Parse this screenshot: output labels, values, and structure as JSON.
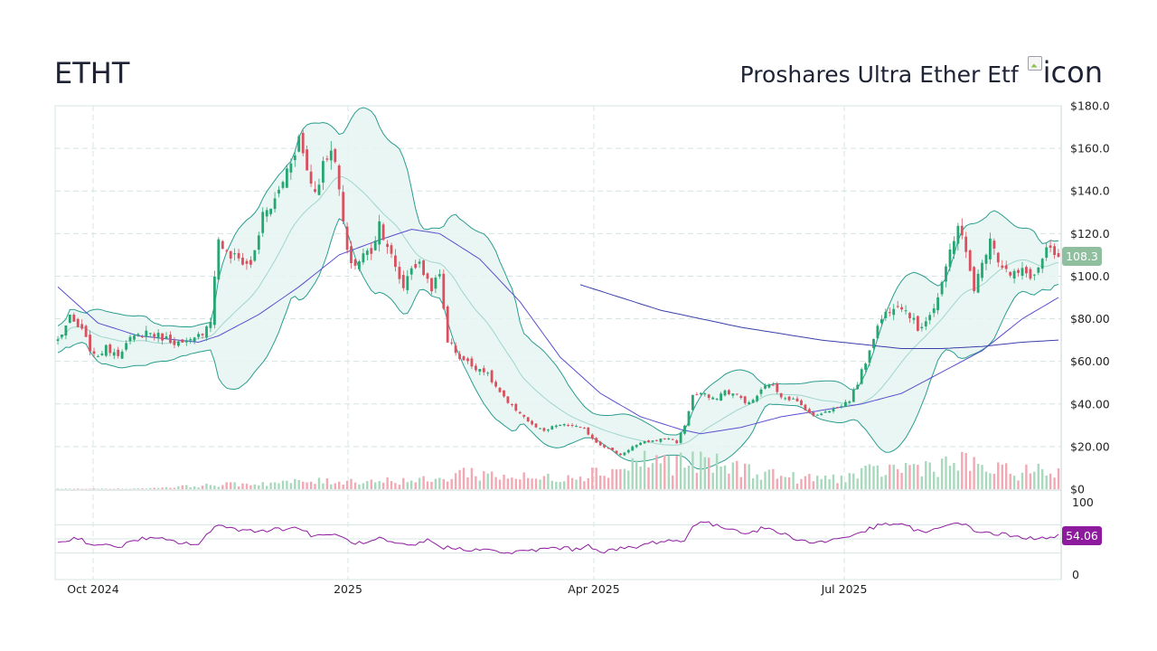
{
  "header": {
    "ticker": "ETHT",
    "company_name": "Proshares Ultra Ether Etf",
    "logo_alt_text": "icon"
  },
  "chart_data": {
    "type": "candlestick",
    "symbol": "ETHT",
    "title": "Proshares Ultra Ether Etf",
    "x_tick_labels": [
      "Oct 2024",
      "2025",
      "Apr 2025",
      "Jul 2025"
    ],
    "price_axis": {
      "ylim": [
        0,
        180
      ],
      "tick_labels": [
        "$0",
        "$20.00",
        "$40.00",
        "$60.00",
        "$80.00",
        "$100.0",
        "$120.0",
        "$140.0",
        "$160.0",
        "$180.0"
      ],
      "last_price_label": "108.3"
    },
    "rsi_axis": {
      "ylim": [
        0,
        100
      ],
      "tick_labels": [
        "0",
        "100"
      ],
      "guide_levels": [
        30,
        50,
        70
      ],
      "last_value_label": "54.06"
    },
    "colors": {
      "up": "#26a672",
      "down": "#d9505f",
      "bollinger_band": "#2a9d8f",
      "bollinger_fill": "#e6f4f1",
      "moving_average_50": "#5a4fcf",
      "moving_average_200": "#3a3fa8",
      "rsi_line": "#8e1a9e",
      "last_price_tag": "#8fbf9f",
      "rsi_tag": "#8e1a9e",
      "grid": "#d4e4e4"
    },
    "price_anchors": [
      [
        0,
        70
      ],
      [
        3,
        80
      ],
      [
        6,
        74
      ],
      [
        9,
        62
      ],
      [
        12,
        66
      ],
      [
        15,
        64
      ],
      [
        18,
        70
      ],
      [
        22,
        74
      ],
      [
        25,
        72
      ],
      [
        28,
        70
      ],
      [
        31,
        68
      ],
      [
        34,
        70
      ],
      [
        36,
        74
      ],
      [
        38,
        80
      ],
      [
        40,
        118
      ],
      [
        42,
        110
      ],
      [
        45,
        108
      ],
      [
        48,
        105
      ],
      [
        51,
        128
      ],
      [
        54,
        135
      ],
      [
        57,
        150
      ],
      [
        60,
        165
      ],
      [
        62,
        150
      ],
      [
        64,
        140
      ],
      [
        66,
        152
      ],
      [
        68,
        162
      ],
      [
        70,
        140
      ],
      [
        72,
        110
      ],
      [
        74,
        105
      ],
      [
        76,
        110
      ],
      [
        78,
        112
      ],
      [
        80,
        125
      ],
      [
        82,
        115
      ],
      [
        84,
        103
      ],
      [
        86,
        95
      ],
      [
        88,
        105
      ],
      [
        90,
        105
      ],
      [
        93,
        95
      ],
      [
        95,
        100
      ],
      [
        97,
        70
      ],
      [
        100,
        62
      ],
      [
        103,
        58
      ],
      [
        106,
        56
      ],
      [
        109,
        48
      ],
      [
        112,
        40
      ],
      [
        115,
        36
      ],
      [
        118,
        30
      ],
      [
        121,
        27
      ],
      [
        124,
        30
      ],
      [
        128,
        30
      ],
      [
        131,
        28
      ],
      [
        134,
        22
      ],
      [
        137,
        19
      ],
      [
        140,
        16
      ],
      [
        143,
        20
      ],
      [
        146,
        22
      ],
      [
        149,
        23
      ],
      [
        152,
        24
      ],
      [
        154,
        22
      ],
      [
        156,
        30
      ],
      [
        158,
        44
      ],
      [
        160,
        45
      ],
      [
        163,
        42
      ],
      [
        166,
        46
      ],
      [
        169,
        44
      ],
      [
        172,
        40
      ],
      [
        175,
        46
      ],
      [
        177,
        50
      ],
      [
        180,
        44
      ],
      [
        183,
        42
      ],
      [
        186,
        38
      ],
      [
        188,
        34
      ],
      [
        191,
        37
      ],
      [
        194,
        38
      ],
      [
        197,
        42
      ],
      [
        199,
        50
      ],
      [
        201,
        60
      ],
      [
        203,
        72
      ],
      [
        205,
        80
      ],
      [
        207,
        85
      ],
      [
        209,
        88
      ],
      [
        212,
        82
      ],
      [
        214,
        75
      ],
      [
        216,
        80
      ],
      [
        218,
        85
      ],
      [
        220,
        95
      ],
      [
        222,
        112
      ],
      [
        224,
        125
      ],
      [
        226,
        110
      ],
      [
        228,
        95
      ],
      [
        230,
        105
      ],
      [
        232,
        120
      ],
      [
        234,
        108
      ],
      [
        237,
        100
      ],
      [
        240,
        102
      ],
      [
        243,
        100
      ],
      [
        246,
        112
      ],
      [
        249,
        108
      ]
    ],
    "volume_levels": [
      [
        0,
        0.3
      ],
      [
        20,
        0.4
      ],
      [
        40,
        3
      ],
      [
        60,
        5
      ],
      [
        80,
        6
      ],
      [
        95,
        6
      ],
      [
        100,
        12
      ],
      [
        120,
        7
      ],
      [
        140,
        14
      ],
      [
        145,
        20
      ],
      [
        160,
        18
      ],
      [
        175,
        12
      ],
      [
        185,
        7
      ],
      [
        195,
        8
      ],
      [
        205,
        13
      ],
      [
        215,
        16
      ],
      [
        225,
        18
      ],
      [
        235,
        12
      ],
      [
        249,
        12
      ]
    ],
    "rsi_anchors": [
      [
        0,
        45
      ],
      [
        5,
        52
      ],
      [
        8,
        43
      ],
      [
        12,
        40
      ],
      [
        16,
        40
      ],
      [
        20,
        50
      ],
      [
        25,
        50
      ],
      [
        30,
        45
      ],
      [
        35,
        42
      ],
      [
        40,
        72
      ],
      [
        45,
        62
      ],
      [
        50,
        62
      ],
      [
        55,
        64
      ],
      [
        60,
        66
      ],
      [
        64,
        52
      ],
      [
        68,
        58
      ],
      [
        72,
        48
      ],
      [
        76,
        42
      ],
      [
        80,
        50
      ],
      [
        84,
        42
      ],
      [
        88,
        40
      ],
      [
        92,
        48
      ],
      [
        96,
        38
      ],
      [
        100,
        36
      ],
      [
        104,
        35
      ],
      [
        108,
        33
      ],
      [
        112,
        30
      ],
      [
        116,
        32
      ],
      [
        120,
        35
      ],
      [
        124,
        38
      ],
      [
        128,
        35
      ],
      [
        132,
        40
      ],
      [
        136,
        32
      ],
      [
        140,
        36
      ],
      [
        144,
        38
      ],
      [
        148,
        45
      ],
      [
        152,
        48
      ],
      [
        156,
        46
      ],
      [
        158,
        70
      ],
      [
        160,
        75
      ],
      [
        164,
        68
      ],
      [
        168,
        64
      ],
      [
        172,
        58
      ],
      [
        176,
        66
      ],
      [
        180,
        58
      ],
      [
        184,
        50
      ],
      [
        188,
        44
      ],
      [
        192,
        48
      ],
      [
        196,
        52
      ],
      [
        200,
        60
      ],
      [
        204,
        68
      ],
      [
        208,
        72
      ],
      [
        212,
        66
      ],
      [
        216,
        58
      ],
      [
        220,
        66
      ],
      [
        224,
        75
      ],
      [
        228,
        62
      ],
      [
        232,
        58
      ],
      [
        236,
        56
      ],
      [
        240,
        50
      ],
      [
        244,
        52
      ],
      [
        249,
        54
      ]
    ],
    "ma50_anchors": [
      [
        0,
        95
      ],
      [
        10,
        78
      ],
      [
        20,
        72
      ],
      [
        30,
        70
      ],
      [
        35,
        69
      ],
      [
        40,
        72
      ],
      [
        50,
        82
      ],
      [
        60,
        95
      ],
      [
        70,
        110
      ],
      [
        80,
        117
      ],
      [
        88,
        122
      ],
      [
        95,
        120
      ],
      [
        105,
        108
      ],
      [
        115,
        88
      ],
      [
        125,
        62
      ],
      [
        135,
        45
      ],
      [
        145,
        34
      ],
      [
        155,
        28
      ],
      [
        160,
        26
      ],
      [
        170,
        29
      ],
      [
        180,
        34
      ],
      [
        190,
        37
      ],
      [
        200,
        40
      ],
      [
        210,
        45
      ],
      [
        220,
        55
      ],
      [
        230,
        65
      ],
      [
        240,
        80
      ],
      [
        249,
        90
      ]
    ],
    "ma200_anchors": [
      [
        130,
        96
      ],
      [
        140,
        90
      ],
      [
        150,
        84
      ],
      [
        160,
        80
      ],
      [
        170,
        76
      ],
      [
        180,
        73
      ],
      [
        190,
        70
      ],
      [
        200,
        68
      ],
      [
        210,
        66
      ],
      [
        220,
        66
      ],
      [
        230,
        67
      ],
      [
        240,
        69
      ],
      [
        249,
        70
      ]
    ]
  }
}
